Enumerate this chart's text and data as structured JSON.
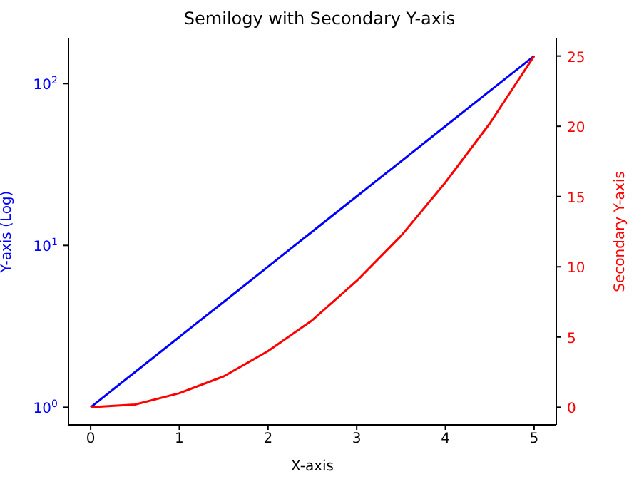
{
  "chart_data": {
    "type": "line",
    "title": "Semilogy with Secondary Y-axis",
    "xlabel": "X-axis",
    "ylabel": "Y-axis (Log)",
    "y2label": "Secondary Y-axis",
    "log": "y",
    "marker": "none",
    "line_style": "solid",
    "x": [
      0,
      0.5,
      1,
      1.5,
      2,
      2.5,
      3,
      3.5,
      4,
      4.5,
      5
    ],
    "series": [
      {
        "color": "#0000ff",
        "values": [
          1,
          1.65,
          2.72,
          4.48,
          7.39,
          12.2,
          20.1,
          33.1,
          54.6,
          90,
          148
        ]
      },
      {
        "color": "#ff0000",
        "axis": "y2",
        "values": [
          0,
          0.2,
          1,
          2.2,
          4,
          6.2,
          9,
          12.2,
          16,
          20.2,
          25
        ]
      }
    ],
    "xlim": [
      -0.25,
      5.25
    ],
    "xticks": [
      0,
      1,
      2,
      3,
      4,
      5
    ],
    "ylim": [
      0.779,
      190
    ],
    "yticks": [
      {
        "value": 1,
        "label": "10$^{0}$"
      },
      {
        "value": 10,
        "label": "10$^{1}$"
      },
      {
        "value": 100,
        "label": "10$^{2}$"
      }
    ],
    "y2lim": [
      -1.25,
      26.25
    ],
    "y2ticks": [
      0,
      5,
      10,
      15,
      20,
      25
    ]
  }
}
